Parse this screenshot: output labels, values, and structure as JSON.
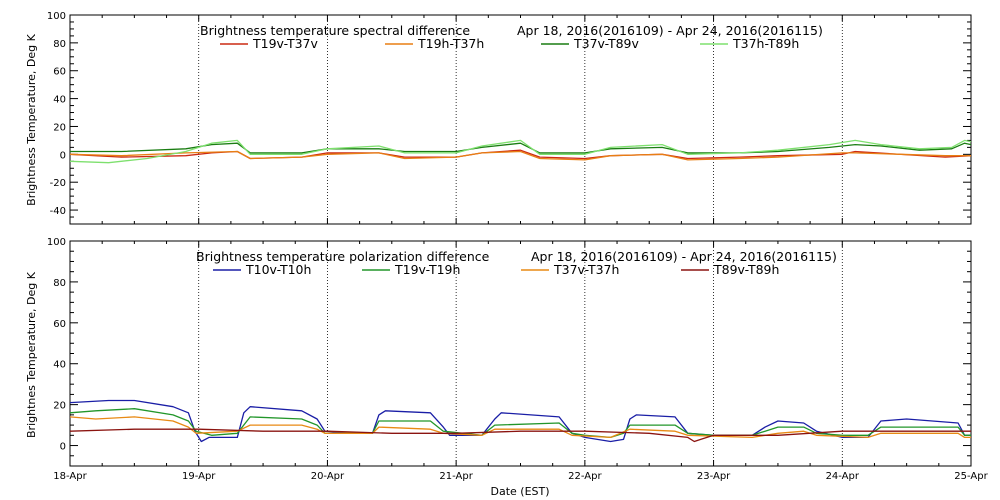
{
  "chart_data": [
    {
      "type": "line",
      "title": "Brightness temperature spectral difference",
      "date_range": "Apr 18, 2016(2016109) - Apr 24, 2016(2016115)",
      "ylabel": "Brightness Temperature, Deg K",
      "xlabel": "",
      "ylim": [
        -50,
        100
      ],
      "yticks": [
        -40,
        -20,
        0,
        20,
        40,
        60,
        80,
        100
      ],
      "xlim": [
        0,
        7
      ],
      "grid": "vertical dotted at day boundaries",
      "series": [
        {
          "name": "T19v-T37v",
          "color": "#cc2a12",
          "points": [
            [
              0,
              0
            ],
            [
              0.4,
              -2
            ],
            [
              0.9,
              -1
            ],
            [
              1.1,
              1
            ],
            [
              1.3,
              2
            ],
            [
              1.4,
              -3
            ],
            [
              1.8,
              -2
            ],
            [
              2.0,
              1
            ],
            [
              2.4,
              1
            ],
            [
              2.6,
              -2
            ],
            [
              3.0,
              -2
            ],
            [
              3.2,
              1
            ],
            [
              3.5,
              3
            ],
            [
              3.65,
              -2
            ],
            [
              4.0,
              -3
            ],
            [
              4.2,
              -1
            ],
            [
              4.6,
              0
            ],
            [
              4.8,
              -3
            ],
            [
              5.2,
              -2
            ],
            [
              5.5,
              -1
            ],
            [
              6.0,
              0
            ],
            [
              6.1,
              2
            ],
            [
              6.8,
              -2
            ],
            [
              7.0,
              -1
            ]
          ]
        },
        {
          "name": "T19h-T37h",
          "color": "#e87f14",
          "points": [
            [
              0,
              0
            ],
            [
              0.4,
              -1
            ],
            [
              0.9,
              1
            ],
            [
              1.3,
              2
            ],
            [
              1.4,
              -3
            ],
            [
              1.8,
              -2
            ],
            [
              2.0,
              0
            ],
            [
              2.4,
              1
            ],
            [
              2.6,
              -3
            ],
            [
              3.0,
              -2
            ],
            [
              3.2,
              1
            ],
            [
              3.5,
              2
            ],
            [
              3.65,
              -3
            ],
            [
              4.0,
              -4
            ],
            [
              4.2,
              -1
            ],
            [
              4.6,
              0
            ],
            [
              4.8,
              -4
            ],
            [
              5.2,
              -3
            ],
            [
              5.5,
              -2
            ],
            [
              6.0,
              1
            ],
            [
              6.1,
              1
            ],
            [
              6.8,
              -1
            ],
            [
              7.0,
              -1
            ]
          ]
        },
        {
          "name": "T37v-T89v",
          "color": "#1a7d12",
          "points": [
            [
              0,
              2
            ],
            [
              0.4,
              2
            ],
            [
              0.9,
              4
            ],
            [
              1.1,
              7
            ],
            [
              1.3,
              8
            ],
            [
              1.4,
              1
            ],
            [
              1.8,
              1
            ],
            [
              2.0,
              4
            ],
            [
              2.4,
              4
            ],
            [
              2.6,
              2
            ],
            [
              3.0,
              2
            ],
            [
              3.2,
              5
            ],
            [
              3.5,
              8
            ],
            [
              3.65,
              1
            ],
            [
              4.0,
              1
            ],
            [
              4.2,
              4
            ],
            [
              4.6,
              5
            ],
            [
              4.8,
              1
            ],
            [
              5.2,
              1
            ],
            [
              5.5,
              2
            ],
            [
              5.9,
              5
            ],
            [
              6.1,
              7
            ],
            [
              6.3,
              6
            ],
            [
              6.6,
              3
            ],
            [
              6.85,
              4
            ],
            [
              6.95,
              8
            ],
            [
              7.0,
              7
            ]
          ]
        },
        {
          "name": "T37h-T89h",
          "color": "#7ee06e",
          "points": [
            [
              0,
              -5
            ],
            [
              0.3,
              -6
            ],
            [
              0.6,
              -3
            ],
            [
              0.9,
              2
            ],
            [
              1.1,
              8
            ],
            [
              1.3,
              10
            ],
            [
              1.4,
              0
            ],
            [
              1.8,
              0
            ],
            [
              2.0,
              4
            ],
            [
              2.4,
              6
            ],
            [
              2.6,
              1
            ],
            [
              3.0,
              1
            ],
            [
              3.2,
              6
            ],
            [
              3.5,
              10
            ],
            [
              3.65,
              0
            ],
            [
              4.0,
              0
            ],
            [
              4.2,
              5
            ],
            [
              4.6,
              7
            ],
            [
              4.8,
              0
            ],
            [
              5.2,
              1
            ],
            [
              5.5,
              3
            ],
            [
              5.9,
              7
            ],
            [
              6.1,
              10
            ],
            [
              6.3,
              7
            ],
            [
              6.6,
              4
            ],
            [
              6.85,
              5
            ],
            [
              6.95,
              10
            ],
            [
              7.0,
              9
            ]
          ]
        }
      ]
    },
    {
      "type": "line",
      "title": "Brightness temperature polarization difference",
      "date_range": "Apr 18, 2016(2016109) - Apr 24, 2016(2016115)",
      "ylabel": "Brightnes Temperature, Deg K",
      "xlabel": "Date (EST)",
      "ylim": [
        -10,
        100
      ],
      "yticks": [
        0,
        20,
        40,
        60,
        80,
        100
      ],
      "xlim": [
        0,
        7
      ],
      "xticks": [
        "18-Apr",
        "19-Apr",
        "20-Apr",
        "21-Apr",
        "22-Apr",
        "23-Apr",
        "24-Apr",
        "25-Apr"
      ],
      "grid": "vertical dotted at day boundaries",
      "series": [
        {
          "name": "T10v-T10h",
          "color": "#1a1ea6",
          "points": [
            [
              0,
              21
            ],
            [
              0.3,
              22
            ],
            [
              0.5,
              22
            ],
            [
              0.8,
              19
            ],
            [
              0.92,
              16
            ],
            [
              0.97,
              7
            ],
            [
              1.02,
              2
            ],
            [
              1.08,
              4
            ],
            [
              1.3,
              4
            ],
            [
              1.35,
              16
            ],
            [
              1.4,
              19
            ],
            [
              1.8,
              17
            ],
            [
              1.92,
              13
            ],
            [
              1.98,
              7
            ],
            [
              2.2,
              6
            ],
            [
              2.35,
              6
            ],
            [
              2.4,
              15
            ],
            [
              2.45,
              17
            ],
            [
              2.8,
              16
            ],
            [
              2.9,
              9
            ],
            [
              2.95,
              5
            ],
            [
              3.2,
              5
            ],
            [
              3.3,
              13
            ],
            [
              3.35,
              16
            ],
            [
              3.8,
              14
            ],
            [
              3.9,
              6
            ],
            [
              4.0,
              4
            ],
            [
              4.2,
              2
            ],
            [
              4.3,
              3
            ],
            [
              4.35,
              13
            ],
            [
              4.4,
              15
            ],
            [
              4.7,
              14
            ],
            [
              4.8,
              6
            ],
            [
              5.0,
              5
            ],
            [
              5.3,
              5
            ],
            [
              5.4,
              9
            ],
            [
              5.5,
              12
            ],
            [
              5.7,
              11
            ],
            [
              5.8,
              7
            ],
            [
              6.0,
              4
            ],
            [
              6.2,
              4
            ],
            [
              6.3,
              12
            ],
            [
              6.5,
              13
            ],
            [
              6.9,
              11
            ],
            [
              6.95,
              5
            ],
            [
              7.0,
              5
            ]
          ]
        },
        {
          "name": "T19v-T19h",
          "color": "#22962a",
          "points": [
            [
              0,
              16
            ],
            [
              0.2,
              17
            ],
            [
              0.5,
              18
            ],
            [
              0.8,
              15
            ],
            [
              0.92,
              12
            ],
            [
              0.98,
              7
            ],
            [
              1.1,
              5
            ],
            [
              1.3,
              6
            ],
            [
              1.4,
              14
            ],
            [
              1.8,
              13
            ],
            [
              1.92,
              10
            ],
            [
              1.98,
              6
            ],
            [
              2.2,
              6
            ],
            [
              2.35,
              6
            ],
            [
              2.4,
              12
            ],
            [
              2.8,
              12
            ],
            [
              2.9,
              7
            ],
            [
              3.2,
              5
            ],
            [
              3.3,
              10
            ],
            [
              3.8,
              11
            ],
            [
              3.9,
              6
            ],
            [
              4.0,
              5
            ],
            [
              4.2,
              4
            ],
            [
              4.3,
              6
            ],
            [
              4.35,
              10
            ],
            [
              4.7,
              10
            ],
            [
              4.8,
              6
            ],
            [
              5.0,
              5
            ],
            [
              5.3,
              5
            ],
            [
              5.4,
              7
            ],
            [
              5.5,
              9
            ],
            [
              5.7,
              9
            ],
            [
              5.8,
              6
            ],
            [
              6.0,
              5
            ],
            [
              6.2,
              5
            ],
            [
              6.3,
              9
            ],
            [
              6.9,
              9
            ],
            [
              6.95,
              5
            ],
            [
              7.0,
              5
            ]
          ]
        },
        {
          "name": "T37v-T37h",
          "color": "#e88a14",
          "points": [
            [
              0,
              14
            ],
            [
              0.2,
              13
            ],
            [
              0.5,
              14
            ],
            [
              0.8,
              12
            ],
            [
              0.92,
              9
            ],
            [
              0.98,
              6
            ],
            [
              1.3,
              7
            ],
            [
              1.4,
              10
            ],
            [
              1.8,
              10
            ],
            [
              1.92,
              8
            ],
            [
              1.98,
              6
            ],
            [
              2.35,
              6
            ],
            [
              2.4,
              9
            ],
            [
              2.8,
              8
            ],
            [
              2.9,
              6
            ],
            [
              3.2,
              5
            ],
            [
              3.3,
              8
            ],
            [
              3.8,
              8
            ],
            [
              3.9,
              5
            ],
            [
              4.2,
              4
            ],
            [
              4.35,
              8
            ],
            [
              4.7,
              7
            ],
            [
              4.8,
              5
            ],
            [
              5.3,
              4
            ],
            [
              5.5,
              6
            ],
            [
              5.7,
              7
            ],
            [
              5.8,
              5
            ],
            [
              6.2,
              4
            ],
            [
              6.3,
              6
            ],
            [
              6.9,
              6
            ],
            [
              6.95,
              4
            ],
            [
              7.0,
              4
            ]
          ]
        },
        {
          "name": "T89v-T89h",
          "color": "#8b1410",
          "points": [
            [
              0,
              7
            ],
            [
              0.5,
              8
            ],
            [
              1.0,
              8
            ],
            [
              1.5,
              7
            ],
            [
              2.0,
              7
            ],
            [
              2.5,
              6
            ],
            [
              3.0,
              6
            ],
            [
              3.5,
              7
            ],
            [
              4.0,
              7
            ],
            [
              4.5,
              6
            ],
            [
              4.8,
              4
            ],
            [
              4.85,
              2
            ],
            [
              4.9,
              3
            ],
            [
              5.0,
              5
            ],
            [
              5.5,
              5
            ],
            [
              6.0,
              7
            ],
            [
              6.5,
              7
            ],
            [
              7.0,
              7
            ]
          ]
        }
      ]
    }
  ]
}
